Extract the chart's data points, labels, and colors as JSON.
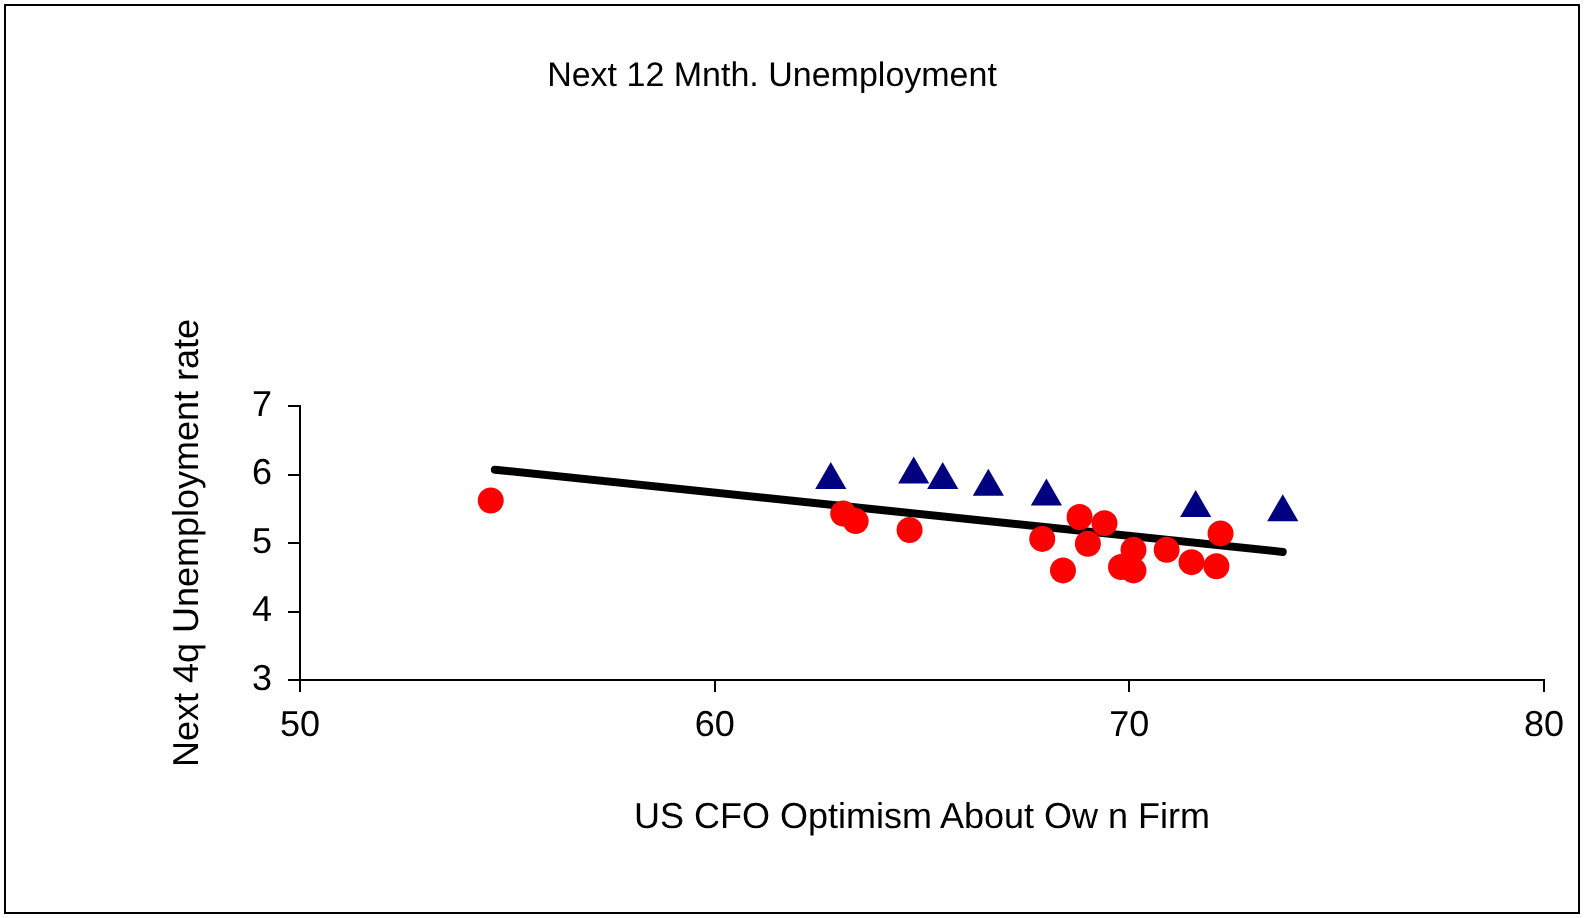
{
  "chart_data": {
    "type": "scatter",
    "title": "Next 12 Mnth. Unemployment",
    "xlabel": "US CFO Optimism About Ow n Firm",
    "ylabel": "Next 4q Unemployment rate",
    "xlim": [
      50,
      80
    ],
    "xticks": [
      50,
      60,
      70,
      80
    ],
    "ylim": [
      3,
      7
    ],
    "yticks": [
      3,
      4,
      5,
      6,
      7
    ],
    "grid": false,
    "legend": false,
    "series": [
      {
        "color": "#ff0000",
        "marker": "circle",
        "x": [
          54.6,
          63.1,
          63.4,
          64.7,
          67.9,
          68.4,
          68.8,
          69.0,
          69.4,
          69.8,
          70.1,
          70.1,
          70.9,
          71.5,
          72.1,
          72.2
        ],
        "values": [
          5.62,
          5.43,
          5.32,
          5.19,
          5.06,
          4.6,
          5.38,
          4.99,
          5.29,
          4.65,
          4.9,
          4.6,
          4.9,
          4.72,
          4.66,
          5.14
        ]
      },
      {
        "color": "#000080",
        "marker": "triangle",
        "x": [
          62.8,
          64.8,
          65.5,
          66.6,
          68.0,
          71.6,
          73.7
        ],
        "values": [
          5.92,
          6.0,
          5.92,
          5.82,
          5.68,
          5.51,
          5.45
        ]
      },
      {
        "type": "line",
        "color": "#000000",
        "marker": "none",
        "x": [
          54.7,
          73.7
        ],
        "values": [
          6.07,
          4.87
        ]
      }
    ]
  }
}
